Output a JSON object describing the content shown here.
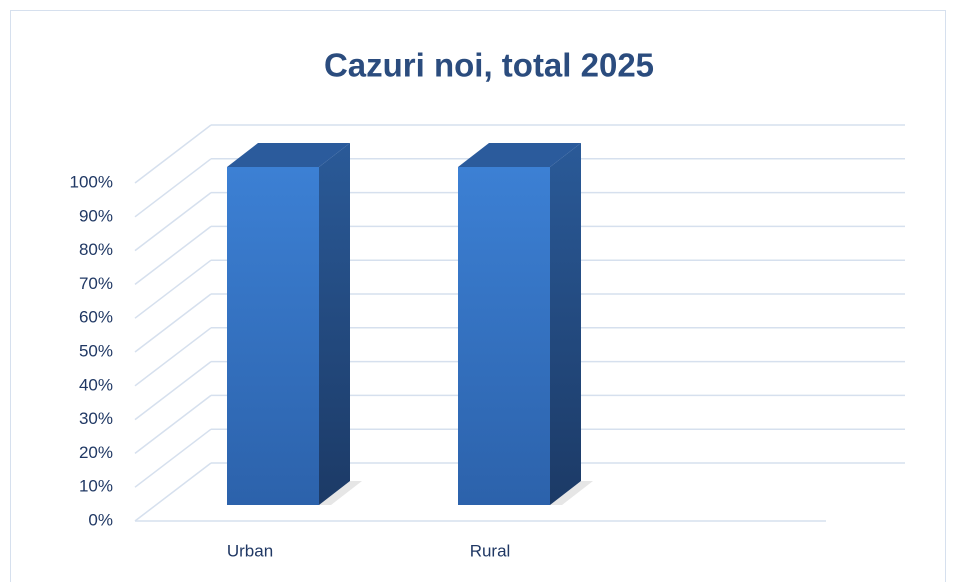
{
  "chart_data": {
    "type": "bar3d",
    "title": "Cazuri noi, total 2025",
    "categories": [
      "Urban",
      "Rural"
    ],
    "values": [
      100,
      100
    ],
    "color": "#3a7dd1",
    "ylim": [
      0,
      100
    ],
    "yticks": [
      {
        "value": 0,
        "label": "0%"
      },
      {
        "value": 10,
        "label": "10%"
      },
      {
        "value": 20,
        "label": "20%"
      },
      {
        "value": 30,
        "label": "30%"
      },
      {
        "value": 40,
        "label": "40%"
      },
      {
        "value": 50,
        "label": "50%"
      },
      {
        "value": 60,
        "label": "60%"
      },
      {
        "value": 70,
        "label": "70%"
      },
      {
        "value": 80,
        "label": "80%"
      },
      {
        "value": 90,
        "label": "90%"
      },
      {
        "value": 100,
        "label": "100%"
      }
    ],
    "grid": true
  }
}
